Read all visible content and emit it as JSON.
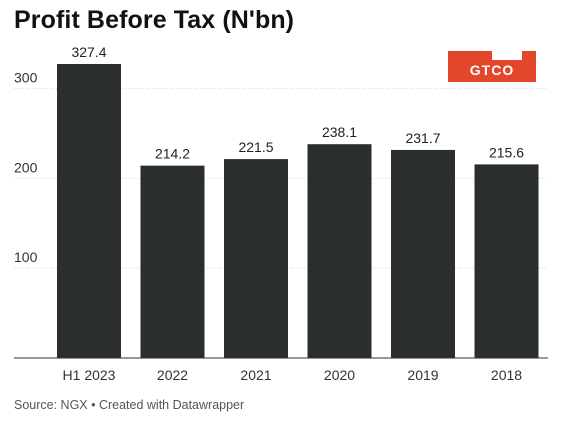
{
  "chart_data": {
    "type": "bar",
    "title": "Profit Before Tax (N'bn)",
    "categories": [
      "H1 2023",
      "2022",
      "2021",
      "2020",
      "2019",
      "2018"
    ],
    "values": [
      327.4,
      214.2,
      221.5,
      238.1,
      231.7,
      215.6
    ],
    "value_labels": [
      "327.4",
      "214.2",
      "221.5",
      "238.1",
      "231.7",
      "215.6"
    ],
    "yticks": [
      100,
      200,
      300
    ],
    "ytick_labels": [
      "100",
      "200",
      "300"
    ],
    "ylim": [
      0,
      327.4
    ],
    "grid": true,
    "bar_color": "#2b2f2c",
    "xlabel": "",
    "ylabel": ""
  },
  "logo": {
    "text": "GTCO",
    "color": "#e2462b"
  },
  "source": "Source: NGX • Created with Datawrapper"
}
